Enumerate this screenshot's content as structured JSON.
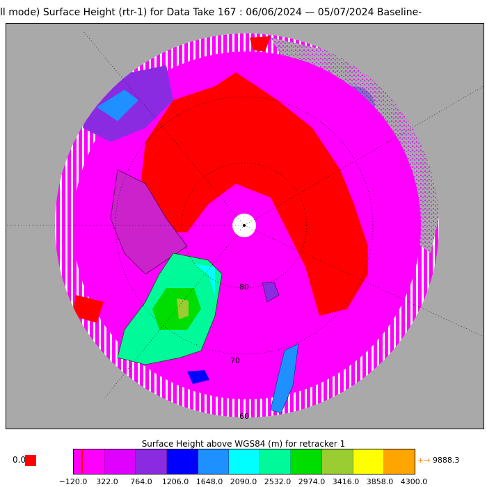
{
  "title": "ll mode) Surface Height (rtr-1) for Data Take 167 : 06/06/2024 — 05/07/2024 Baseline-",
  "map": {
    "latitude_labels": [
      "80",
      "70",
      "60"
    ],
    "land_color": "#a9a9a9",
    "ocean_color": "#ff00ff",
    "sea_ice_color": "#ff0000",
    "data_gap_color": "#ffffff"
  },
  "colorbar": {
    "title": "Surface Height above WGS84 (m) for retracker 1",
    "colors": [
      "#ff00ff",
      "#e000ff",
      "#8a2be2",
      "#0000ff",
      "#1e90ff",
      "#00ffff",
      "#00fa9a",
      "#00dd00",
      "#9acd32",
      "#ffff00",
      "#ffa500"
    ],
    "ticks": [
      "−120.0",
      "322.0",
      "764.0",
      "1206.0",
      "1648.0",
      "2090.0",
      "2532.0",
      "2974.0",
      "3416.0",
      "3858.0",
      "4300.0"
    ],
    "zero_label": "0.0",
    "zero_color": "#ff0000",
    "max_arrow": "+→",
    "max_value": "9888.3"
  }
}
